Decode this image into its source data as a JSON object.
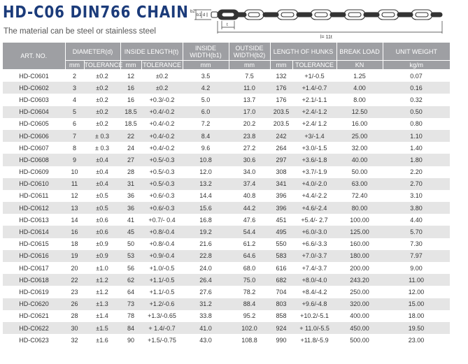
{
  "title": "HD-C06 DIN766 CHAIN",
  "subtitle": "The material can be steel or stainless steel",
  "diagram": {
    "label_b1": "b1",
    "label_b2": "b2",
    "label_d": "d",
    "label_t": "t",
    "label_length": "l= 11t"
  },
  "table": {
    "headers": {
      "art_no": "ART. NO.",
      "diameter": "DIAMETER(d)",
      "inside_length": "INSIDE LENGTH(t)",
      "inside_width": "INSIDE WIDTH(b1)",
      "outside_width": "OUTSIDE WIDTH(b2)",
      "length_hunks": "LENGTH OF HUNKS",
      "break_load": "BREAK LOAD",
      "unit_weight": "UNIT WEIGHT"
    },
    "subheaders": {
      "mm1": "mm",
      "tol1": "TOLERANCE",
      "mm2": "mm",
      "tol2": "TOLERANCE",
      "mm3": "mm",
      "mm4": "mm",
      "mm5": "mm",
      "tol5": "TOLERANCE",
      "kn": "KN",
      "kgm": "kg/m"
    },
    "rows": [
      [
        "HD-C0601",
        "2",
        "±0.2",
        "12",
        "±0.2",
        "3.5",
        "7.5",
        "132",
        "+1/-0.5",
        "1.25",
        "0.07"
      ],
      [
        "HD-C0602",
        "3",
        "±0.2",
        "16",
        "±0.2",
        "4.2",
        "11.0",
        "176",
        "+1.4/-0.7",
        "4.00",
        "0.16"
      ],
      [
        "HD-C0603",
        "4",
        "±0.2",
        "16",
        "+0.3/-0.2",
        "5.0",
        "13.7",
        "176",
        "+2.1/-1.1",
        "8.00",
        "0.32"
      ],
      [
        "HD-C0604",
        "5",
        "±0.2",
        "18.5",
        "+0.4/-0.2",
        "6.0",
        "17.0",
        "203.5",
        "+2.4/-1.2",
        "12.50",
        "0.50"
      ],
      [
        "HD-C0605",
        "6",
        "±0.2",
        "18.5",
        "+0.4/-0.2",
        "7.2",
        "20.2",
        "203.5",
        "+2.4/ 1.2",
        "16.00",
        "0.80"
      ],
      [
        "HD-C0606",
        "7",
        "± 0.3",
        "22",
        "+0.4/-0.2",
        "8.4",
        "23.8",
        "242",
        "+3/-1.4",
        "25.00",
        "1.10"
      ],
      [
        "HD-C0607",
        "8",
        "± 0.3",
        "24",
        "+0.4/-0.2",
        "9.6",
        "27.2",
        "264",
        "+3.0/-1.5",
        "32.00",
        "1.40"
      ],
      [
        "HD-C0608",
        "9",
        "±0.4",
        "27",
        "+0.5/-0.3",
        "10.8",
        "30.6",
        "297",
        "+3.6/-1.8",
        "40.00",
        "1.80"
      ],
      [
        "HD-C0609",
        "10",
        "±0.4",
        "28",
        "+0.5/-0.3",
        "12.0",
        "34.0",
        "308",
        "+3.7/-1.9",
        "50.00",
        "2.20"
      ],
      [
        "HD-C0610",
        "11",
        "±0.4",
        "31",
        "+0.5/-0.3",
        "13.2",
        "37.4",
        "341",
        "+4.0/-2.0",
        "63.00",
        "2.70"
      ],
      [
        "HD-C0611",
        "12",
        "±0.5",
        "36",
        "+0.6/-0.3",
        "14.4",
        "40.8",
        "396",
        "+4.4/-2.2",
        "72.40",
        "3.10"
      ],
      [
        "HD-C0612",
        "13",
        "±0.5",
        "36",
        "+0.6/-0.3",
        "15.6",
        "44.2",
        "396",
        "+4.6/-2.4",
        "80.00",
        "3.80"
      ],
      [
        "HD-C0613",
        "14",
        "±0.6",
        "41",
        "+0.7/- 0.4",
        "16.8",
        "47.6",
        "451",
        "+5.4/- 2.7",
        "100.00",
        "4.40"
      ],
      [
        "HD-C0614",
        "16",
        "±0.6",
        "45",
        "+0.8/-0.4",
        "19.2",
        "54.4",
        "495",
        "+6.0/-3.0",
        "125.00",
        "5.70"
      ],
      [
        "HD-C0615",
        "18",
        "±0.9",
        "50",
        "+0.8/-0.4",
        "21.6",
        "61.2",
        "550",
        "+6.6/-3.3",
        "160.00",
        "7.30"
      ],
      [
        "HD-C0616",
        "19",
        "±0.9",
        "53",
        "+0.9/-0.4",
        "22.8",
        "64.6",
        "583",
        "+7.0/-3.7",
        "180.00",
        "7.97"
      ],
      [
        "HD-C0617",
        "20",
        "±1.0",
        "56",
        "+1.0/-0.5",
        "24.0",
        "68.0",
        "616",
        "+7.4/-3.7",
        "200.00",
        "9.00"
      ],
      [
        "HD-C0618",
        "22",
        "±1.2",
        "62",
        "+1.1/-0.5",
        "26.4",
        "75.0",
        "682",
        "+8.0/-4.0",
        "243.20",
        "11.00"
      ],
      [
        "HD-C0619",
        "23",
        "±1.2",
        "64",
        "+1.1/-0.5",
        "27.6",
        "78.2",
        "704",
        "+8.4/-4.2",
        "250.00",
        "12.00"
      ],
      [
        "HD-C0620",
        "26",
        "±1.3",
        "73",
        "+1.2/-0.6",
        "31.2",
        "88.4",
        "803",
        "+9.6/-4.8",
        "320.00",
        "15.00"
      ],
      [
        "HD-C0621",
        "28",
        "±1.4",
        "78",
        "+1.3/-0.65",
        "33.8",
        "95.2",
        "858",
        "+10.2/-5.1",
        "400.00",
        "18.00"
      ],
      [
        "HD-C0622",
        "30",
        "±1.5",
        "84",
        "+ 1.4/-0.7",
        "41.0",
        "102.0",
        "924",
        "+ 11.0/-5.5",
        "450.00",
        "19.50"
      ],
      [
        "HD-C0623",
        "32",
        "±1.6",
        "90",
        "+1.5/-0.75",
        "43.0",
        "108.8",
        "990",
        "+11.8/-5.9",
        "500.00",
        "23.00"
      ]
    ]
  }
}
